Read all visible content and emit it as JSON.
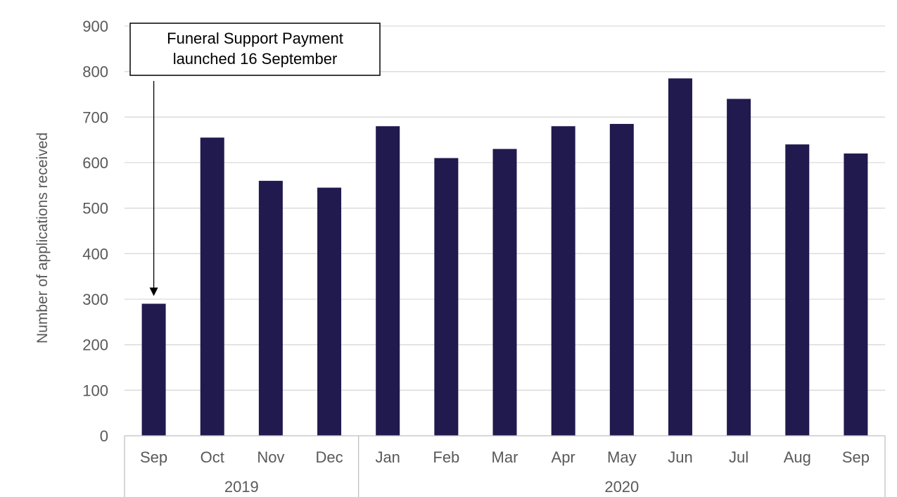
{
  "chart_data": {
    "type": "bar",
    "categories": [
      "Sep",
      "Oct",
      "Nov",
      "Dec",
      "Jan",
      "Feb",
      "Mar",
      "Apr",
      "May",
      "Jun",
      "Jul",
      "Aug",
      "Sep"
    ],
    "groups": [
      {
        "label": "2019",
        "count": 4
      },
      {
        "label": "2020",
        "count": 9
      }
    ],
    "values": [
      290,
      655,
      560,
      545,
      680,
      610,
      630,
      680,
      685,
      785,
      740,
      640,
      620
    ],
    "ylabel": "Number of applications received",
    "ylim": [
      0,
      900
    ],
    "yticks": [
      0,
      100,
      200,
      300,
      400,
      500,
      600,
      700,
      800,
      900
    ],
    "grid": true,
    "bar_color": "#201a4e",
    "annotation": {
      "lines": [
        "Funeral Support Payment",
        "launched 16 September"
      ],
      "target_index": 0
    }
  }
}
